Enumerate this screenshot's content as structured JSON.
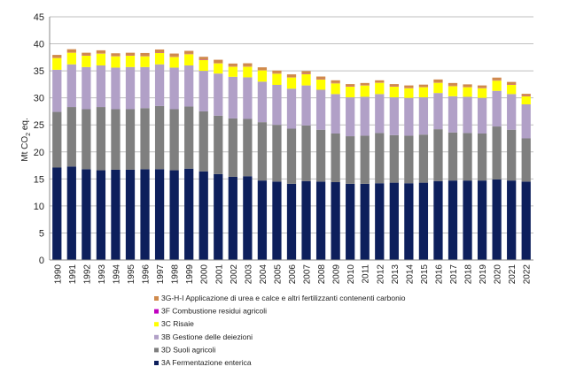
{
  "chart_data": {
    "type": "bar",
    "stacked": true,
    "ylabel_main": "Mt CO",
    "ylabel_sub": "2",
    "ylabel_suffix": " eq.",
    "ylim": [
      0,
      45
    ],
    "yticks": [
      0,
      5,
      10,
      15,
      20,
      25,
      30,
      35,
      40,
      45
    ],
    "grid": true,
    "legend_position": "bottom",
    "categories": [
      "1990",
      "1991",
      "1992",
      "1993",
      "1994",
      "1995",
      "1996",
      "1997",
      "1998",
      "1999",
      "2000",
      "2001",
      "2002",
      "2003",
      "2004",
      "2005",
      "2006",
      "2007",
      "2008",
      "2009",
      "2010",
      "2011",
      "2012",
      "2013",
      "2014",
      "2015",
      "2016",
      "2017",
      "2018",
      "2019",
      "2020",
      "2021",
      "2022"
    ],
    "series": [
      {
        "name": "3A Fermentazione enterica",
        "color": "#0d1f5c",
        "values": [
          17.1,
          17.3,
          16.8,
          16.6,
          16.7,
          16.7,
          16.8,
          16.8,
          16.6,
          16.9,
          16.4,
          15.9,
          15.4,
          15.5,
          14.7,
          14.5,
          14.1,
          14.6,
          14.5,
          14.4,
          14.1,
          14.1,
          14.2,
          14.3,
          14.2,
          14.3,
          14.6,
          14.7,
          14.7,
          14.7,
          14.9,
          14.7,
          14.5
        ]
      },
      {
        "name": "3D Suoli agricoli",
        "color": "#7f7f7f",
        "values": [
          10.3,
          11.0,
          11.1,
          11.7,
          11.2,
          11.2,
          11.3,
          11.7,
          11.3,
          11.5,
          11.1,
          10.8,
          10.8,
          10.6,
          10.8,
          10.5,
          10.2,
          10.3,
          9.6,
          9.0,
          8.8,
          8.9,
          9.3,
          8.8,
          8.8,
          8.9,
          9.6,
          8.9,
          8.8,
          8.7,
          9.8,
          9.4,
          8.0
        ]
      },
      {
        "name": "3B Gestione delle deiezioni",
        "color": "#b1a0c7",
        "values": [
          7.8,
          7.9,
          7.8,
          7.7,
          7.7,
          7.8,
          7.6,
          7.7,
          7.7,
          7.6,
          7.5,
          7.8,
          7.7,
          7.7,
          7.5,
          7.4,
          7.4,
          7.4,
          7.4,
          7.3,
          7.2,
          7.2,
          7.2,
          7.0,
          7.0,
          6.9,
          6.7,
          6.7,
          6.7,
          6.6,
          6.6,
          6.6,
          6.3
        ]
      },
      {
        "name": "3C Risaie",
        "color": "#ffff00",
        "values": [
          2.2,
          2.2,
          2.1,
          2.2,
          2.1,
          2.1,
          2.0,
          2.1,
          2.0,
          2.1,
          2.0,
          1.9,
          1.9,
          2.0,
          2.1,
          2.1,
          2.1,
          2.1,
          1.9,
          2.0,
          2.0,
          2.1,
          2.1,
          2.0,
          1.8,
          1.9,
          1.9,
          1.9,
          1.8,
          1.8,
          1.9,
          1.7,
          1.5
        ]
      },
      {
        "name": "3F Combustione residui agricoli",
        "color": "#c000c0",
        "values": [
          0.05,
          0.05,
          0.05,
          0.05,
          0.05,
          0.05,
          0.05,
          0.05,
          0.05,
          0.05,
          0.05,
          0.05,
          0.05,
          0.05,
          0.05,
          0.05,
          0.05,
          0.05,
          0.05,
          0.05,
          0.05,
          0.05,
          0.05,
          0.05,
          0.05,
          0.05,
          0.05,
          0.05,
          0.05,
          0.05,
          0.05,
          0.05,
          0.05
        ]
      },
      {
        "name": "3G-H-I Applicazione di urea e calce e altri fertilizzanti contenenti carbonio",
        "color": "#d08a4c",
        "values": [
          0.5,
          0.55,
          0.5,
          0.55,
          0.5,
          0.5,
          0.55,
          0.6,
          0.55,
          0.55,
          0.55,
          0.6,
          0.5,
          0.55,
          0.5,
          0.5,
          0.5,
          0.5,
          0.5,
          0.5,
          0.4,
          0.4,
          0.4,
          0.4,
          0.45,
          0.4,
          0.55,
          0.5,
          0.45,
          0.45,
          0.5,
          0.5,
          0.4
        ]
      }
    ]
  }
}
